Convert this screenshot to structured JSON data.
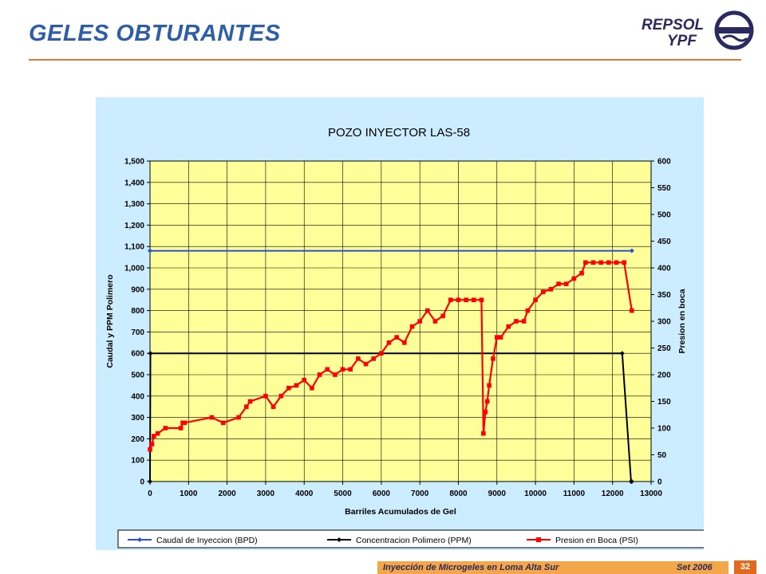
{
  "slide": {
    "title": "GELES OBTURANTES",
    "logo_line1": "REPSOL",
    "logo_line2": "YPF",
    "footer_text": "Inyección de Microgeles en Loma Alta Sur",
    "footer_date": "Set 2006",
    "page_number": "32"
  },
  "colors": {
    "title": "#2e5ea8",
    "rule": "#e07b39",
    "panel": "#ccecff",
    "plot_bg": "#ffff99",
    "caudal": "#2a4fd8",
    "concentracion": "#000000",
    "presion": "#ff0000"
  },
  "chart_data": {
    "type": "line",
    "title": "POZO INYECTOR  LAS-58",
    "xlabel": "Barriles Acumulados de Gel",
    "ylabel": "Caudal y PPM Polimero",
    "y2label": "Presion en boca",
    "xlim": [
      0,
      13000
    ],
    "ylim": [
      0,
      1500
    ],
    "y2lim": [
      0,
      600
    ],
    "grid": true,
    "legend_position": "bottom",
    "x_ticks": [
      "0",
      "1000",
      "2000",
      "3000",
      "4000",
      "5000",
      "6000",
      "7000",
      "8000",
      "9000",
      "10000",
      "11000",
      "12000",
      "13000"
    ],
    "y_ticks": [
      "0",
      "100",
      "200",
      "300",
      "400",
      "500",
      "600",
      "700",
      "800",
      "900",
      "1,000",
      "1,100",
      "1,200",
      "1,300",
      "1,400",
      "1,500"
    ],
    "y2_ticks": [
      "0",
      "50",
      "100",
      "150",
      "200",
      "250",
      "300",
      "350",
      "400",
      "450",
      "500",
      "550",
      "600"
    ],
    "series": [
      {
        "name": "Caudal de Inyeccion (BPD)",
        "axis": "left",
        "color": "#2a4fd8",
        "marker": "diamond",
        "x": [
          0,
          12500
        ],
        "y": [
          1080,
          1080
        ]
      },
      {
        "name": "Concentracion Polimero (PPM)",
        "axis": "left",
        "color": "#000000",
        "marker": "diamond",
        "x": [
          0,
          10,
          12250,
          12480,
          12500
        ],
        "y": [
          0,
          600,
          600,
          0,
          0
        ]
      },
      {
        "name": "Presion en Boca (PSI)",
        "axis": "right",
        "color": "#ff0000",
        "marker": "square",
        "x": [
          0,
          50,
          100,
          200,
          400,
          800,
          850,
          900,
          1600,
          1900,
          2300,
          2500,
          2600,
          3000,
          3200,
          3400,
          3600,
          3800,
          4000,
          4200,
          4400,
          4600,
          4800,
          5000,
          5200,
          5400,
          5600,
          5800,
          6000,
          6200,
          6400,
          6600,
          6800,
          7000,
          7200,
          7400,
          7600,
          7800,
          8000,
          8200,
          8400,
          8600,
          8650,
          8700,
          8750,
          8800,
          8900,
          9000,
          9100,
          9300,
          9500,
          9700,
          9800,
          10000,
          10200,
          10400,
          10600,
          10800,
          11000,
          11200,
          11300,
          11500,
          11700,
          11900,
          12100,
          12300,
          12500
        ],
        "y": [
          60,
          70,
          85,
          90,
          100,
          100,
          110,
          110,
          120,
          110,
          120,
          140,
          150,
          160,
          140,
          160,
          175,
          180,
          190,
          175,
          200,
          210,
          200,
          210,
          210,
          230,
          220,
          230,
          240,
          260,
          270,
          260,
          290,
          300,
          320,
          300,
          310,
          340,
          340,
          340,
          340,
          340,
          90,
          130,
          150,
          180,
          230,
          270,
          270,
          290,
          300,
          300,
          320,
          340,
          355,
          360,
          370,
          370,
          380,
          390,
          410,
          410,
          410,
          410,
          410,
          410,
          320
        ]
      }
    ]
  }
}
